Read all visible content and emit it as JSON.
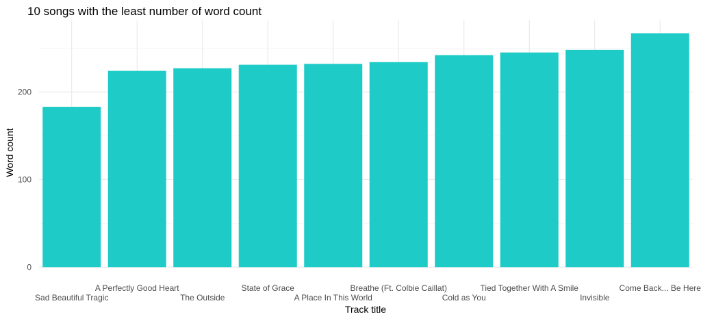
{
  "chart_data": {
    "type": "bar",
    "title": "10 songs with the least number of word count",
    "xlabel": "Track title",
    "ylabel": "Word count",
    "categories": [
      "Sad Beautiful Tragic",
      "A Perfectly Good Heart",
      "The Outside",
      "State of Grace",
      "A Place In This World",
      "Breathe (Ft. Colbie Caillat)",
      "Cold as You",
      "Tied Together With A Smile",
      "Invisible",
      "Come Back... Be Here"
    ],
    "values": [
      183,
      224,
      227,
      231,
      232,
      234,
      242,
      245,
      248,
      267
    ],
    "yticks": [
      0,
      100,
      200
    ],
    "ylim": [
      0,
      280
    ],
    "grid": true,
    "bar_color": "#1ECBC7"
  }
}
